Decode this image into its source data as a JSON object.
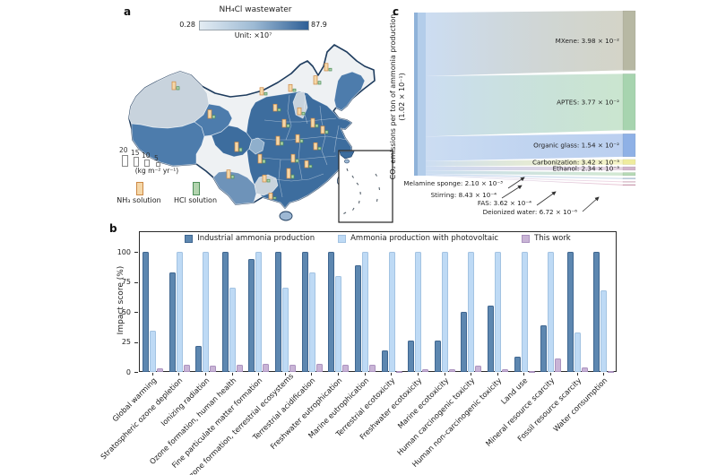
{
  "figure": {
    "panel_a": {
      "label": "a",
      "title": "NH₄Cl wastewater",
      "scale": {
        "min": "0.28",
        "max": "87.9",
        "unit": "Unit: ×10⁷"
      },
      "size_legend": {
        "values": [
          "20",
          "15",
          "10",
          "5"
        ],
        "unit": "(kg m⁻² yr⁻¹)"
      },
      "solution_legend": [
        {
          "label": "NH₃ solution",
          "fill": "#f5d7a8",
          "border": "#cc8844"
        },
        {
          "label": "HCl solution",
          "fill": "#b2d4ae",
          "border": "#4e8f5a"
        }
      ],
      "choropleth_colors": {
        "no_data": "#eef1f3",
        "low": "#c8d3dd",
        "mid": "#6e93b9",
        "high": "#4d7cac",
        "higher": "#3d6d9e",
        "light_patch": "#8fafcc",
        "island": "#9db8d4"
      }
    },
    "panel_b": {
      "label": "b",
      "ylabel": "Impact score (%)"
    },
    "panel_c": {
      "label": "c",
      "axis_label": "CO₂ emissions per ton of ammonia production (1.02 × 10⁻¹)"
    }
  },
  "chart_data": [
    {
      "type": "bar",
      "panel": "b",
      "ylabel": "Impact score (%)",
      "ylim": [
        0,
        100
      ],
      "yticks": [
        0,
        25,
        50,
        75,
        100
      ],
      "legend_position": "top-center-inside",
      "categories": [
        "Global warming",
        "Stratospheric ozone depletion",
        "Ionizing radiation",
        "Ozone formation, human health",
        "Fine particulate matter formation",
        "Ozone formation, terrestrial ecosystems",
        "Terrestrial acidification",
        "Freshwater eutrophication",
        "Marine eutrophication",
        "Terrestrial ecotoxicity",
        "Freshwater ecotoxicity",
        "Marine ecotoxicity",
        "Human carcinogenic toxicity",
        "Human non-carcinogenic toxicity",
        "Land use",
        "Mineral resource scarcity",
        "Fossil resource scarcity",
        "Water consumption"
      ],
      "series": [
        {
          "name": "Industrial ammonia production",
          "color": "#5d87b0",
          "border": "#3f6690",
          "values": [
            100,
            83,
            22,
            100,
            94,
            100,
            100,
            100,
            89,
            18,
            26,
            26,
            50,
            55,
            13,
            39,
            100,
            100
          ]
        },
        {
          "name": "Ammonia production with photovoltaic",
          "color": "#bedaf5",
          "border": "#a3c3e2",
          "values": [
            34,
            100,
            100,
            70,
            100,
            70,
            83,
            80,
            100,
            100,
            100,
            100,
            100,
            100,
            100,
            100,
            33,
            68
          ]
        },
        {
          "name": "This work",
          "color": "#c9b4d6",
          "border": "#ab93bf",
          "values": [
            3,
            6,
            5,
            6,
            7,
            6,
            7,
            6,
            6,
            1,
            2,
            2,
            5,
            2,
            1,
            11,
            4,
            1
          ]
        }
      ]
    },
    {
      "type": "sankey",
      "panel": "c",
      "source_label": "CO₂ emissions per ton of ammonia production (1.02 × 10⁻¹)",
      "source_total": 0.102,
      "source_color": "#b3cdea",
      "nodes": [
        {
          "name": "MXene",
          "label": "MXene: 3.98 × 10⁻²",
          "value": 0.0398,
          "color": "#b7b8a3",
          "label_pos": "inside"
        },
        {
          "name": "APTES",
          "label": "APTES: 3.77 × 10⁻²",
          "value": 0.0377,
          "color": "#a7d4af",
          "label_pos": "inside"
        },
        {
          "name": "Organic glass",
          "label": "Organic glass: 1.54 × 10⁻²",
          "value": 0.0154,
          "color": "#8fb1e6",
          "label_pos": "inside"
        },
        {
          "name": "Carbonization",
          "label": "Carbonization: 3.42 × 10⁻³",
          "value": 0.00342,
          "color": "#efec9e",
          "label_pos": "inside"
        },
        {
          "name": "Ethanol",
          "label": "Ethanol: 2.34 × 10⁻³",
          "value": 0.00234,
          "color": "#d2b5cb",
          "label_pos": "inside"
        },
        {
          "name": "Melamine sponge",
          "label": "Melamine sponge: 2.10 × 10⁻³",
          "value": 0.0021,
          "color": "#b5d9b5",
          "label_pos": "below"
        },
        {
          "name": "Stirring",
          "label": "Stirring: 8.43 × 10⁻⁴",
          "value": 0.000843,
          "color": "#bccfe3",
          "label_pos": "below"
        },
        {
          "name": "FAS",
          "label": "FAS: 3.62 × 10⁻⁴",
          "value": 0.000362,
          "color": "#e8bcd0",
          "label_pos": "below"
        },
        {
          "name": "Deionized water",
          "label": "Deionized water: 6.72 × 10⁻⁶",
          "value": 6.7e-06,
          "color": "#d89bb5",
          "label_pos": "below"
        }
      ]
    },
    {
      "type": "map",
      "panel": "a",
      "region": "China provinces choropleth of NH₄Cl wastewater with NH₃/HCl solution mini-bars",
      "glyphs": [
        {
          "x": 57,
          "y": 56,
          "nh3": 16,
          "hcl": 6
        },
        {
          "x": 97,
          "y": 88,
          "nh3": 17,
          "hcl": 6
        },
        {
          "x": 127,
          "y": 125,
          "nh3": 19,
          "hcl": 7
        },
        {
          "x": 118,
          "y": 155,
          "nh3": 17,
          "hcl": 6
        },
        {
          "x": 158,
          "y": 159,
          "nh3": 14,
          "hcl": 5
        },
        {
          "x": 155,
          "y": 62,
          "nh3": 15,
          "hcl": 5
        },
        {
          "x": 170,
          "y": 80,
          "nh3": 14,
          "hcl": 5
        },
        {
          "x": 187,
          "y": 58,
          "nh3": 14,
          "hcl": 5
        },
        {
          "x": 215,
          "y": 50,
          "nh3": 17,
          "hcl": 6
        },
        {
          "x": 227,
          "y": 35,
          "nh3": 15,
          "hcl": 5
        },
        {
          "x": 197,
          "y": 84,
          "nh3": 14,
          "hcl": 5
        },
        {
          "x": 212,
          "y": 98,
          "nh3": 18,
          "hcl": 6
        },
        {
          "x": 180,
          "y": 98,
          "nh3": 16,
          "hcl": 6
        },
        {
          "x": 223,
          "y": 105,
          "nh3": 15,
          "hcl": 6
        },
        {
          "x": 173,
          "y": 118,
          "nh3": 18,
          "hcl": 7
        },
        {
          "x": 195,
          "y": 115,
          "nh3": 16,
          "hcl": 6
        },
        {
          "x": 215,
          "y": 123,
          "nh3": 14,
          "hcl": 5
        },
        {
          "x": 153,
          "y": 138,
          "nh3": 18,
          "hcl": 7
        },
        {
          "x": 190,
          "y": 137,
          "nh3": 16,
          "hcl": 6
        },
        {
          "x": 205,
          "y": 143,
          "nh3": 14,
          "hcl": 5
        },
        {
          "x": 185,
          "y": 155,
          "nh3": 20,
          "hcl": 7
        },
        {
          "x": 165,
          "y": 178,
          "nh3": 12,
          "hcl": 4
        }
      ]
    }
  ]
}
